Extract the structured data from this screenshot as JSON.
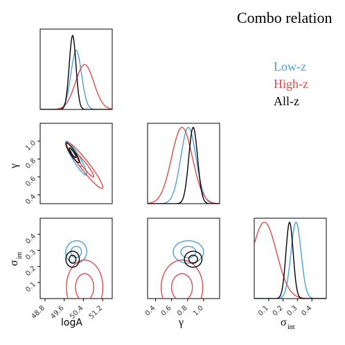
{
  "legend": {
    "title": "Combo relation",
    "entries": [
      {
        "label": "Low-z",
        "color": "#4a9fd8"
      },
      {
        "label": "High-z",
        "color": "#e04a4a"
      },
      {
        "label": "All-z",
        "color": "#000000"
      }
    ]
  },
  "axis_labels": {
    "logA": "logA",
    "gamma": "γ",
    "sigma_main": "σ",
    "sigma_sub": "int"
  },
  "chart_data": {
    "type": "corner",
    "parameters": [
      "logA",
      "gamma",
      "sigma_int"
    ],
    "ranges": {
      "logA": [
        48.6,
        51.6
      ],
      "gamma": [
        0.3,
        1.2
      ],
      "sigma_int": [
        0.0,
        0.5
      ]
    },
    "ticks": {
      "logA": {
        "values": [
          48.8,
          49.6,
          50.4,
          51.2
        ],
        "labels": [
          "48.8",
          "49.6",
          "50.4",
          "51.2"
        ]
      },
      "gamma": {
        "values": [
          0.4,
          0.6,
          0.8,
          1.0
        ],
        "labels": [
          "0.4",
          "0.6",
          "0.8",
          "1.0"
        ]
      },
      "sigma_int": {
        "values": [
          0.1,
          0.2,
          0.3,
          0.4
        ],
        "labels": [
          "0.1",
          "0.2",
          "0.3",
          "0.4"
        ]
      }
    },
    "series": [
      {
        "name": "Low-z",
        "color": "#4a9fd8",
        "logA": {
          "mean": 50.1,
          "sd": 0.22
        },
        "gamma": {
          "mean": 0.81,
          "sd": 0.095
        },
        "sigma_int": {
          "mean": 0.29,
          "sd": 0.035
        },
        "corr": {
          "logA_gamma": -0.92,
          "logA_sigma_int": 0.05,
          "gamma_sigma_int": 0.0
        },
        "contour_levels": [
          1,
          2
        ]
      },
      {
        "name": "High-z",
        "color": "#e04a4a",
        "logA": {
          "mean": 50.45,
          "sd": 0.38
        },
        "gamma": {
          "mean": 0.73,
          "sd": 0.13
        },
        "sigma_int": {
          "mean": 0.07,
          "sd": 0.085,
          "truncated_at": 0.0
        },
        "corr": {
          "logA_gamma": -0.95,
          "logA_sigma_int": 0.0,
          "gamma_sigma_int": 0.0
        },
        "contour_levels": [
          1,
          2
        ]
      },
      {
        "name": "All-z",
        "color": "#000000",
        "logA": {
          "mean": 49.95,
          "sd": 0.14
        },
        "gamma": {
          "mean": 0.87,
          "sd": 0.055
        },
        "sigma_int": {
          "mean": 0.245,
          "sd": 0.025
        },
        "corr": {
          "logA_gamma": -0.9,
          "logA_sigma_int": 0.0,
          "gamma_sigma_int": 0.0
        },
        "contour_levels": [
          1,
          2
        ]
      }
    ],
    "grid": false,
    "legend_position": "top-right"
  }
}
